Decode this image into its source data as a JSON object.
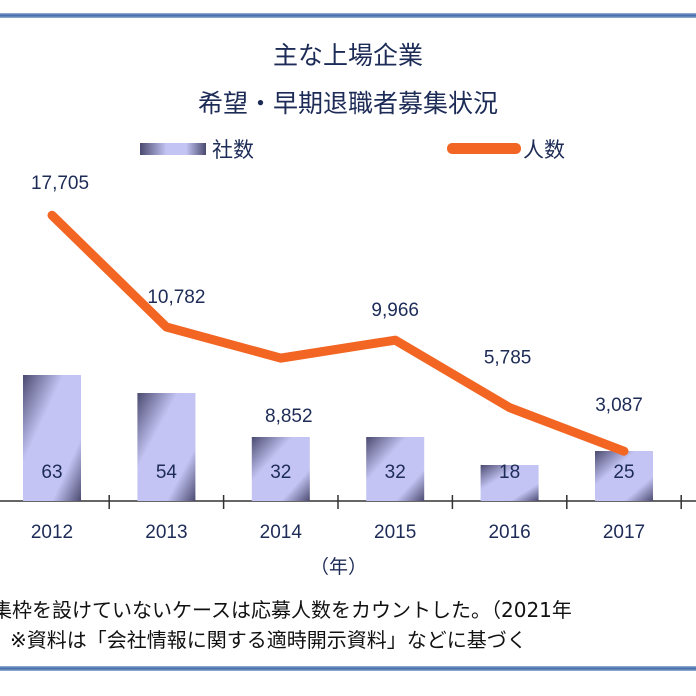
{
  "chart_data": {
    "type": "bar+line",
    "title": [
      "主な上場企業",
      "希望・早期退職者募集状況"
    ],
    "xlabel": "（年）",
    "categories": [
      "2012",
      "2013",
      "2014",
      "2015",
      "2016",
      "2017"
    ],
    "series": [
      {
        "name": "社数",
        "type": "bar",
        "values": [
          63,
          54,
          32,
          32,
          18,
          25
        ],
        "labels": [
          "63",
          "54",
          "32",
          "32",
          "18",
          "25"
        ],
        "color": "#c4c4f4"
      },
      {
        "name": "人数",
        "type": "line",
        "values": [
          17705,
          10782,
          8852,
          9966,
          5785,
          3087
        ],
        "labels": [
          "17,705",
          "10,782",
          "8,852",
          "9,966",
          "5,785",
          "3,087"
        ],
        "color": "#f26522"
      }
    ],
    "legend": "top",
    "grid": false
  },
  "footnotes": [
    "集枠を設けていないケースは応募人数をカウントした。（2021年",
    "※資料は「会社情報に関する適時開示資料」などに基づく"
  ],
  "colors": {
    "rule": "#3e68a8",
    "text": "#1d2b57"
  }
}
